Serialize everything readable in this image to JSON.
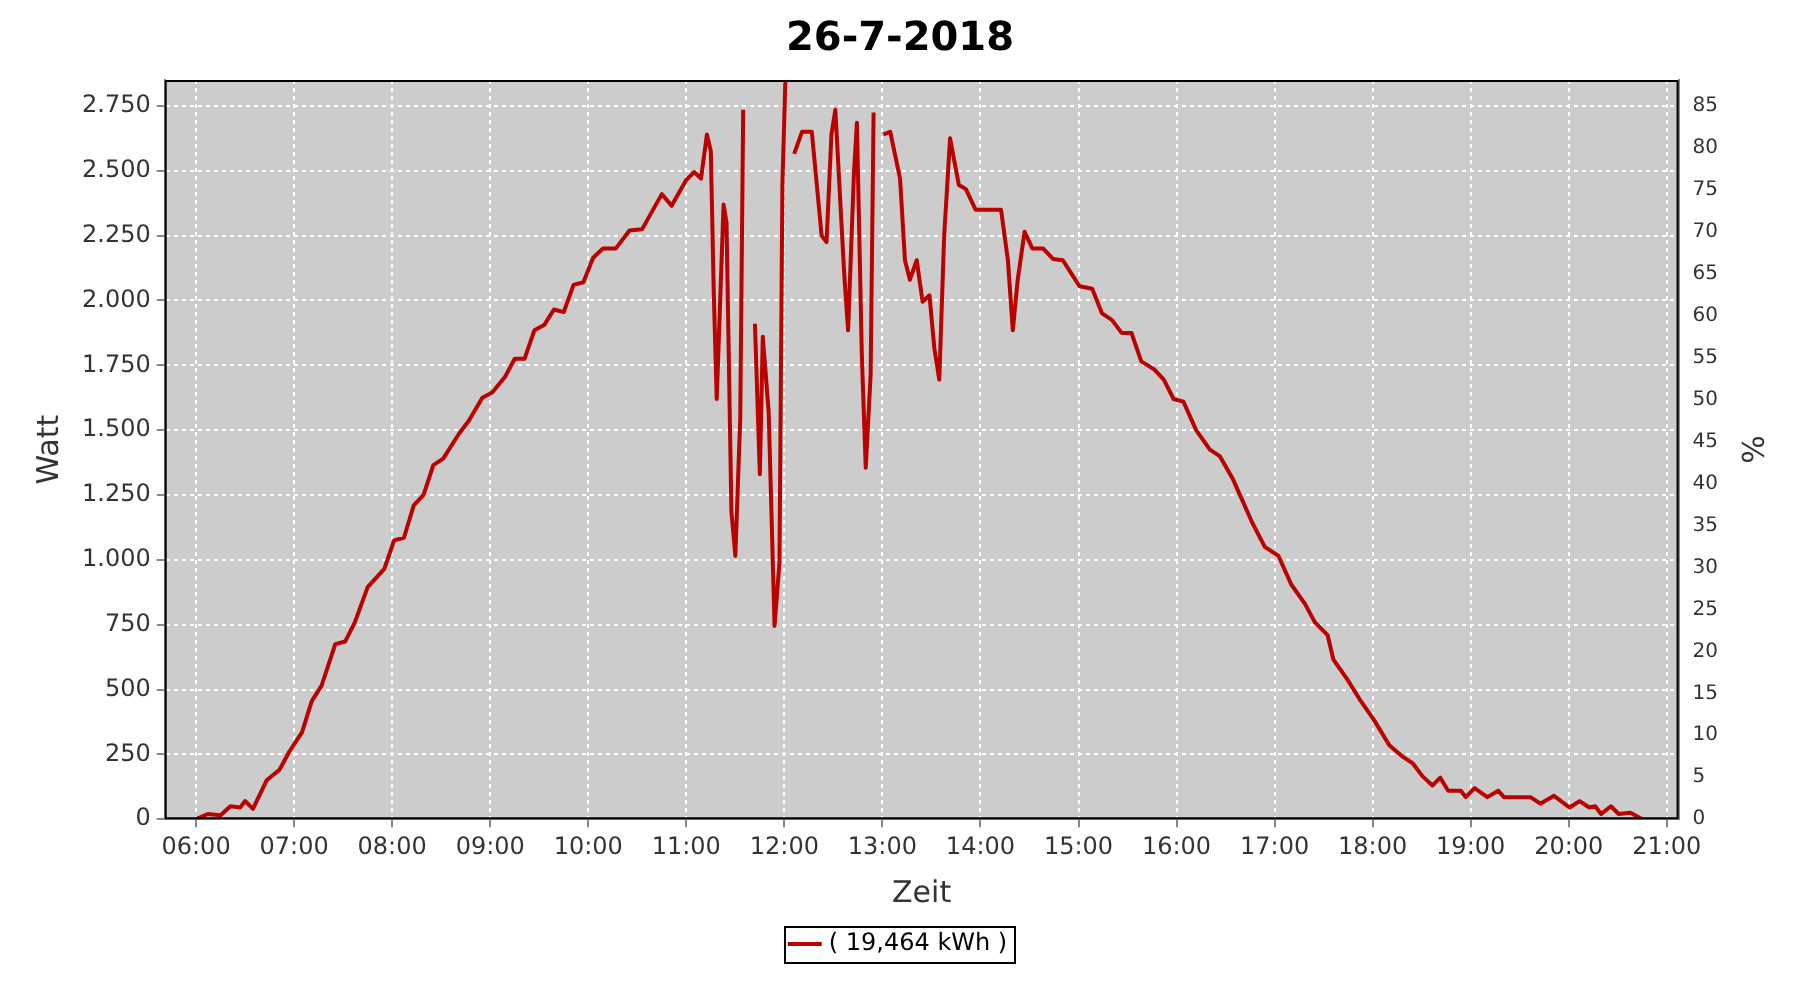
{
  "chart_data": {
    "type": "line",
    "title": "26-7-2018",
    "xlabel": "Zeit",
    "ylabel": "Watt",
    "y2label": "%",
    "x": [
      6.0,
      6.12,
      6.25,
      6.35,
      6.45,
      6.5,
      6.58,
      6.72,
      6.85,
      6.95,
      7.08,
      7.18,
      7.28,
      7.42,
      7.52,
      7.62,
      7.75,
      7.92,
      8.02,
      8.12,
      8.22,
      8.32,
      8.42,
      8.52,
      8.68,
      8.78,
      8.92,
      9.02,
      9.15,
      9.25,
      9.35,
      9.45,
      9.55,
      9.65,
      9.75,
      9.85,
      9.95,
      10.05,
      10.15,
      10.28,
      10.42,
      10.55,
      10.75,
      10.85,
      11.0,
      11.08,
      11.15,
      11.21,
      11.25,
      11.28,
      11.31,
      11.38,
      11.41,
      11.46,
      11.5,
      11.55,
      11.58,
      11.62,
      11.65,
      11.7,
      11.75,
      11.78,
      11.84,
      11.9,
      11.95,
      11.98,
      12.01,
      12.05,
      12.1,
      12.18,
      12.28,
      12.38,
      12.43,
      12.48,
      12.52,
      12.61,
      12.65,
      12.71,
      12.74,
      12.79,
      12.83,
      12.88,
      12.91,
      12.94,
      13.01,
      13.08,
      13.18,
      13.23,
      13.28,
      13.35,
      13.41,
      13.48,
      13.53,
      13.58,
      13.63,
      13.69,
      13.78,
      13.85,
      13.95,
      14.21,
      14.28,
      14.33,
      14.38,
      14.45,
      14.53,
      14.64,
      14.74,
      14.84,
      15.01,
      15.14,
      15.24,
      15.34,
      15.44,
      15.54,
      15.64,
      15.77,
      15.87,
      15.97,
      16.07,
      16.2,
      16.34,
      16.44,
      16.57,
      16.67,
      16.77,
      16.9,
      17.04,
      17.17,
      17.31,
      17.41,
      17.54,
      17.6,
      17.74,
      17.88,
      18.01,
      18.17,
      18.31,
      18.41,
      18.51,
      18.61,
      18.69,
      18.77,
      18.9,
      18.95,
      19.04,
      19.17,
      19.28,
      19.34,
      19.61,
      19.71,
      19.85,
      20.01,
      20.11,
      20.21,
      20.27,
      20.33,
      20.43,
      20.51,
      20.63,
      20.75
    ],
    "series": [
      {
        "name": "( 19,464 kWh )",
        "color": "#bb0000",
        "values": [
          0,
          20,
          15,
          50,
          45,
          70,
          40,
          150,
          190,
          260,
          335,
          455,
          515,
          675,
          685,
          760,
          895,
          965,
          1075,
          1085,
          1210,
          1250,
          1365,
          1390,
          1485,
          1535,
          1625,
          1645,
          1705,
          1775,
          1775,
          1885,
          1905,
          1965,
          1955,
          2060,
          2070,
          2165,
          2200,
          2200,
          2270,
          2275,
          2410,
          2365,
          2465,
          2495,
          2470,
          2640,
          2575,
          2030,
          1620,
          2370,
          2300,
          1185,
          1015,
          1545,
          2735,
          null,
          null,
          1910,
          1330,
          1860,
          1570,
          745,
          990,
          2445,
          2845,
          null,
          2565,
          2650,
          2650,
          2250,
          2225,
          2640,
          2735,
          2105,
          1885,
          2495,
          2685,
          1790,
          1355,
          1715,
          2725,
          null,
          2640,
          2650,
          2470,
          2155,
          2080,
          2155,
          1995,
          2020,
          1815,
          1695,
          2250,
          2625,
          2445,
          2430,
          2350,
          2350,
          2155,
          1885,
          2080,
          2265,
          2200,
          2200,
          2160,
          2155,
          2055,
          2045,
          1950,
          1925,
          1875,
          1875,
          1765,
          1735,
          1695,
          1620,
          1610,
          1500,
          1425,
          1400,
          1315,
          1230,
          1145,
          1050,
          1015,
          905,
          830,
          760,
          710,
          615,
          540,
          455,
          385,
          285,
          240,
          215,
          165,
          130,
          160,
          110,
          110,
          85,
          120,
          85,
          110,
          85,
          85,
          60,
          90,
          45,
          70,
          45,
          50,
          20,
          50,
          20,
          25,
          0
        ]
      }
    ],
    "xlim": [
      5.68,
      21.12
    ],
    "xticks": [
      {
        "value": 6,
        "label": "06:00"
      },
      {
        "value": 7,
        "label": "07:00"
      },
      {
        "value": 8,
        "label": "08:00"
      },
      {
        "value": 9,
        "label": "09:00"
      },
      {
        "value": 10,
        "label": "10:00"
      },
      {
        "value": 11,
        "label": "11:00"
      },
      {
        "value": 12,
        "label": "12:00"
      },
      {
        "value": 13,
        "label": "13:00"
      },
      {
        "value": 14,
        "label": "14:00"
      },
      {
        "value": 15,
        "label": "15:00"
      },
      {
        "value": 16,
        "label": "16:00"
      },
      {
        "value": 17,
        "label": "17:00"
      },
      {
        "value": 18,
        "label": "18:00"
      },
      {
        "value": 19,
        "label": "19:00"
      },
      {
        "value": 20,
        "label": "20:00"
      },
      {
        "value": 21,
        "label": "21:00"
      }
    ],
    "ylim": [
      0,
      2850
    ],
    "yticks": [
      0,
      250,
      500,
      750,
      {
        "value": 1000,
        "label": "1.000"
      },
      {
        "value": 1250,
        "label": "1.250"
      },
      {
        "value": 1500,
        "label": "1.500"
      },
      {
        "value": 1750,
        "label": "1.750"
      },
      {
        "value": 2000,
        "label": "2.000"
      },
      {
        "value": 2250,
        "label": "2.250"
      },
      {
        "value": 2500,
        "label": "2.500"
      },
      {
        "value": 2750,
        "label": "2.750"
      }
    ],
    "y2lim": [
      0,
      88.1
    ],
    "y2ticks": [
      0,
      5,
      10,
      15,
      20,
      25,
      30,
      35,
      40,
      45,
      50,
      55,
      60,
      65,
      70,
      75,
      80,
      85
    ],
    "grid": true,
    "legend": "bottom",
    "marker": "none",
    "line_style": "solid"
  }
}
